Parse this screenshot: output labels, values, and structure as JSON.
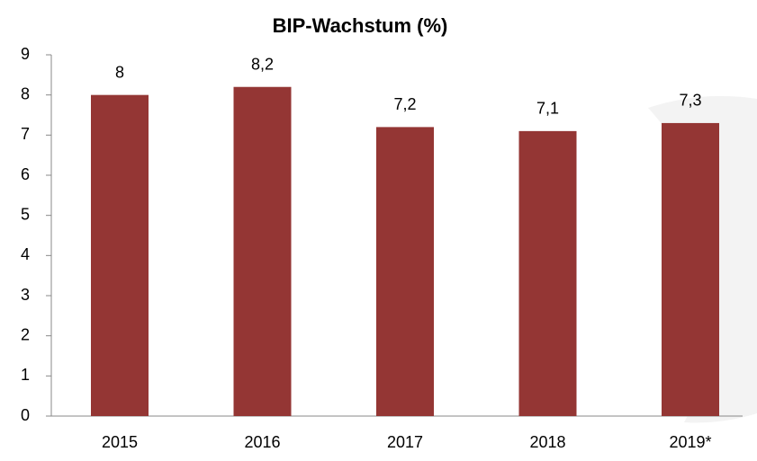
{
  "chart_data": {
    "type": "bar",
    "title": "BIP-Wachstum (%)",
    "categories": [
      "2015",
      "2016",
      "2017",
      "2018",
      "2019*"
    ],
    "values": [
      8,
      8.2,
      7.2,
      7.1,
      7.3
    ],
    "value_labels": [
      "8",
      "8,2",
      "7,2",
      "7,1",
      "7,3"
    ],
    "color": "#943634",
    "ylim": [
      0,
      9
    ],
    "yticks": [
      0,
      1,
      2,
      3,
      4,
      5,
      6,
      7,
      8,
      9
    ],
    "grid": false
  }
}
